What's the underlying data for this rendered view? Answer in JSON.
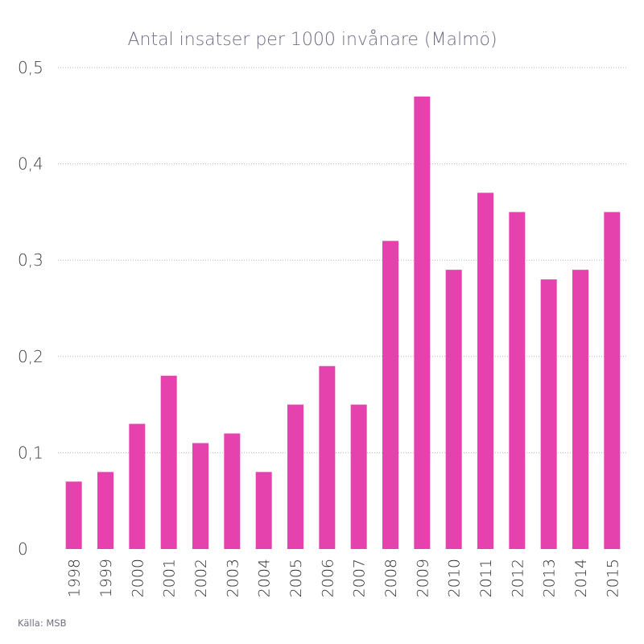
{
  "chart_data": {
    "type": "bar",
    "title": "Antal insatser per 1000 invånare (Malmö)",
    "source": "Källa: MSB",
    "xlabel": "",
    "ylabel": "",
    "categories": [
      "1998",
      "1999",
      "2000",
      "2001",
      "2002",
      "2003",
      "2004",
      "2005",
      "2006",
      "2007",
      "2008",
      "2009",
      "2010",
      "2011",
      "2012",
      "2013",
      "2014",
      "2015"
    ],
    "values": [
      0.07,
      0.08,
      0.13,
      0.18,
      0.11,
      0.12,
      0.08,
      0.15,
      0.19,
      0.15,
      0.32,
      0.47,
      0.29,
      0.37,
      0.35,
      0.28,
      0.29,
      0.35
    ],
    "ylim": [
      0,
      0.5
    ],
    "yticks": [
      0,
      0.1,
      0.2,
      0.3,
      0.4,
      0.5
    ],
    "ytick_labels": [
      "0",
      "0,1",
      "0,2",
      "0,3",
      "0,4",
      "0,5"
    ],
    "grid": true,
    "bar_color": "#e542ae"
  }
}
